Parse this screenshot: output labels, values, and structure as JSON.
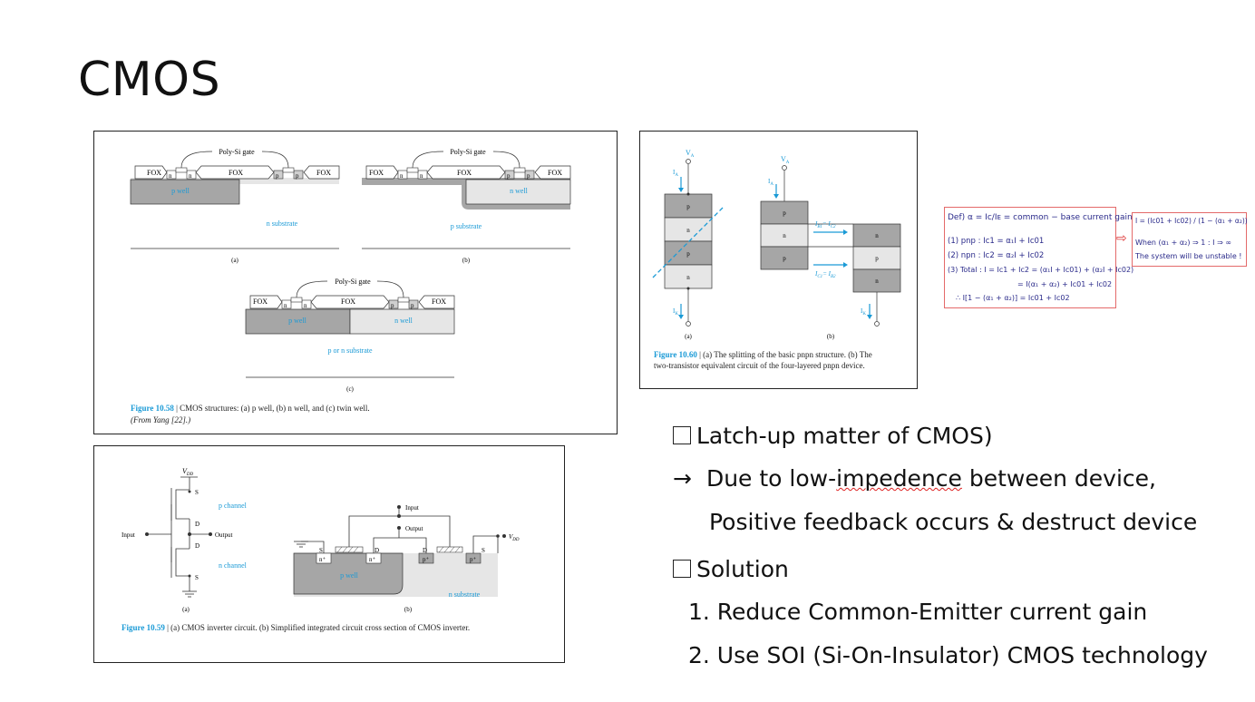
{
  "slide": {
    "title": "CMOS"
  },
  "fig58": {
    "poly_gate": "Poly-Si gate",
    "fox": "FOX",
    "n": "n",
    "p": "p",
    "p_well": "p well",
    "n_well": "n well",
    "n_substrate": "n substrate",
    "p_substrate": "p substrate",
    "pn_substrate": "p or n substrate",
    "sub_a": "(a)",
    "sub_b": "(b)",
    "sub_c": "(c)",
    "caption_label": "Figure 10.58",
    "caption_text": " | CMOS structures: (a) p well, (b) n well, and (c) twin well.",
    "caption_source": "(From Yang [22].)"
  },
  "fig59": {
    "vdd": "V",
    "vdd_sub": "DD",
    "s": "S",
    "d": "D",
    "input": "Input",
    "output": "Output",
    "p_channel": "p channel",
    "n_channel": "n channel",
    "p_well": "p well",
    "n_substrate": "n substrate",
    "nplus": "n⁺",
    "pplus": "p⁺",
    "sub_a": "(a)",
    "sub_b": "(b)",
    "caption_label": "Figure 10.59",
    "caption_text": " | (a) CMOS inverter circuit. (b) Simplified integrated circuit cross section of CMOS inverter."
  },
  "fig60": {
    "va": "V",
    "va_sub": "A",
    "ia": "I",
    "ia_sub": "A",
    "ik": "I",
    "ik_sub": "K",
    "ib1": "I",
    "ib1_sub": "B1",
    "ic2": "= I",
    "ic2_sub": "C2",
    "ic1": "I",
    "ic1_sub": "C1",
    "ib2": "= I",
    "ib2_sub": "B2",
    "p": "p",
    "n": "n",
    "sub_a": "(a)",
    "sub_b": "(b)",
    "caption_label": "Figure 10.60",
    "caption_text": " | (a) The splitting of the basic pnpn structure. (b) The",
    "caption_text2": "two-transistor equivalent circuit of the four-layered pnpn device."
  },
  "formula": {
    "line1": "Def)  α = Iᴄ/Iᴇ = common − base  current gain",
    "line2": "(1) pnp : Iᴄ1 = α₁I + Iᴄ01",
    "line3": "(2) npn : Iᴄ2 = α₂I + Iᴄ02",
    "line4": "(3) Total : I = Iᴄ1 + Iᴄ2 = (α₁I + Iᴄ01) + (α₂I + Iᴄ02)",
    "line5": "= I(α₁ + α₂) + Iᴄ01 + Iᴄ02",
    "line6": "∴ I[1 − (α₁ + α₂)] = Iᴄ01 + Iᴄ02",
    "arrow": "⇨",
    "result1": "I = (Iᴄ01 + Iᴄ02) / (1 − (α₁ + α₂))",
    "result2": "When (α₁ + α₂) ⇒ 1 :  I ⇒ ∞",
    "result3": "The system  will  be unstable !"
  },
  "bullets": {
    "b1": "Latch-up matter of CMOS)",
    "b2_arrow": "→",
    "b2_pre": "Due to low-",
    "b2_wavy": "impedence",
    "b2_post": " between device,",
    "b3": "Positive feedback occurs & destruct device",
    "b4": "Solution",
    "b5": "1. Reduce Common-Emitter current gain",
    "b6": "2. Use SOI (Si-On-Insulator) CMOS technology"
  },
  "colors": {
    "accent_blue": "#1a9ad6",
    "formula_border": "#e46a6a",
    "well_gray": "#a6a6a6"
  }
}
